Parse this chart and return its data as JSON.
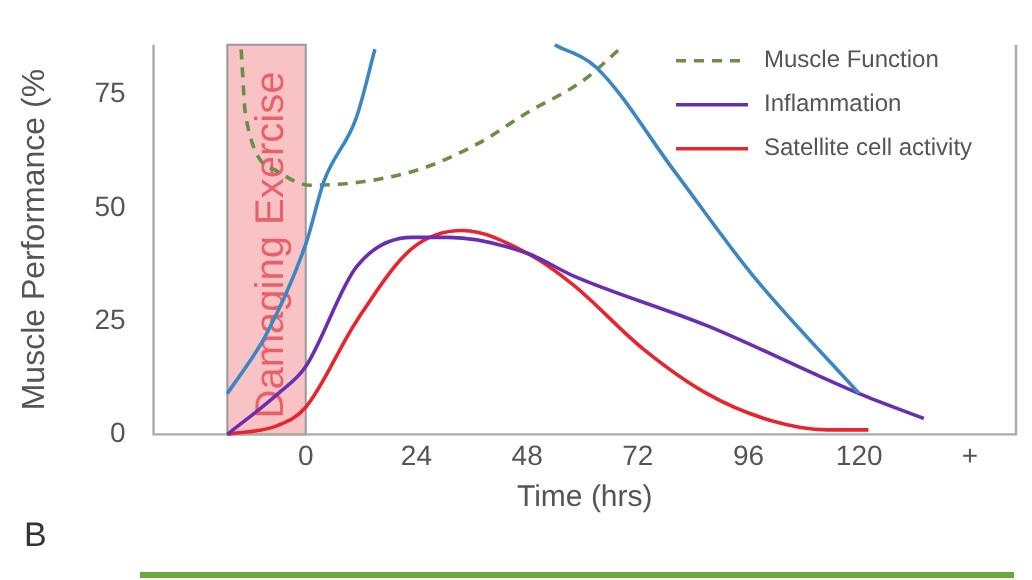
{
  "chart_data": {
    "type": "line",
    "xlabel": "Time (hrs)",
    "ylabel": "Muscle Performance (%",
    "xlim": [
      -33,
      154
    ],
    "ylim": [
      0,
      86
    ],
    "xticks": [
      0,
      24,
      48,
      72,
      96,
      120,
      {
        "value": 144,
        "label": "+"
      }
    ],
    "yticks": [
      0,
      25,
      50,
      75
    ],
    "grid": false,
    "legend": "top right",
    "marker": "none",
    "bands": [
      {
        "axis": "x",
        "from": -17,
        "to": 0,
        "label": "Damaging Exercise",
        "color": "#f9c3c6"
      }
    ],
    "series": [
      {
        "color": "#3a87c4",
        "x": [
          -17,
          -8.6,
          0,
          4,
          11,
          15,
          16,
          54,
          63,
          80,
          97,
          120
        ],
        "values": [
          9,
          22,
          42,
          56,
          70,
          85,
          null,
          86,
          81,
          58,
          35,
          9
        ]
      },
      {
        "name": "Muscle Function",
        "color": "#6b8f47",
        "line_style": "dashed",
        "x": [
          -14,
          -13,
          -6,
          1,
          23,
          37,
          48,
          60,
          68
        ],
        "values": [
          85,
          70,
          58,
          55,
          58,
          64,
          71,
          78,
          85
        ]
      },
      {
        "name": "Inflammation",
        "color": "#6a2fb0",
        "x": [
          -17,
          -6,
          0,
          11,
          23,
          31,
          48,
          58,
          87,
          120,
          134
        ],
        "values": [
          0,
          9,
          15,
          37,
          43.5,
          43.5,
          40,
          35,
          24,
          9,
          3.5
        ]
      },
      {
        "name": "Satellite cell activity",
        "color": "#e8242c",
        "x": [
          -17,
          -6,
          0,
          11,
          23,
          34,
          48,
          58,
          73,
          87,
          101,
          113,
          122
        ],
        "values": [
          0,
          2,
          6,
          25,
          41,
          45,
          40,
          33,
          19,
          9,
          3,
          1,
          1
        ]
      }
    ],
    "annotations": [
      "B"
    ]
  }
}
